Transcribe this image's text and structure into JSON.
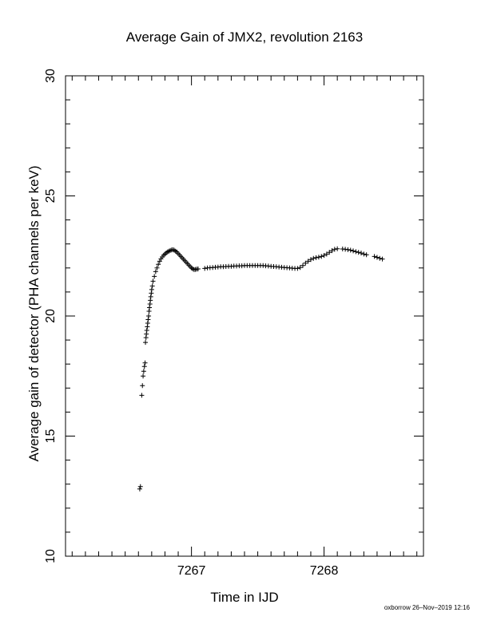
{
  "chart_data": {
    "type": "scatter",
    "title": "Average Gain of JMX2, revolution 2163",
    "xlabel": "Time in IJD",
    "ylabel": "Average gain of detector (PHA channels per keV)",
    "xlim": [
      7266.05,
      7268.75
    ],
    "ylim": [
      10,
      30
    ],
    "x_ticks": [
      7267,
      7268
    ],
    "y_ticks": [
      10,
      15,
      20,
      25,
      30
    ],
    "grid": false,
    "marker": "+",
    "series": [
      {
        "x": [
          7266.61,
          7266.615,
          7266.625,
          7266.63,
          7266.635,
          7266.64,
          7266.645,
          7266.65,
          7266.653,
          7266.657,
          7266.66,
          7266.663,
          7266.667,
          7266.67,
          7266.673,
          7266.677,
          7266.68,
          7266.683,
          7266.687,
          7266.69,
          7266.693,
          7266.697,
          7266.7,
          7266.705,
          7266.71,
          7266.72,
          7266.73,
          7266.74,
          7266.75,
          7266.76,
          7266.77,
          7266.78,
          7266.79,
          7266.8,
          7266.81,
          7266.82,
          7266.83,
          7266.84,
          7266.85,
          7266.86,
          7266.87,
          7266.88,
          7266.89,
          7266.9,
          7266.91,
          7266.92,
          7266.93,
          7266.94,
          7266.95,
          7266.96,
          7266.97,
          7266.98,
          7266.99,
          7267.0,
          7267.01,
          7267.02,
          7267.03,
          7267.04,
          7267.05,
          7267.1,
          7267.12,
          7267.14,
          7267.16,
          7267.18,
          7267.2,
          7267.22,
          7267.24,
          7267.26,
          7267.28,
          7267.3,
          7267.32,
          7267.34,
          7267.36,
          7267.38,
          7267.4,
          7267.42,
          7267.44,
          7267.46,
          7267.48,
          7267.5,
          7267.52,
          7267.54,
          7267.56,
          7267.58,
          7267.6,
          7267.62,
          7267.64,
          7267.66,
          7267.68,
          7267.7,
          7267.72,
          7267.74,
          7267.76,
          7267.78,
          7267.8,
          7267.82,
          7267.84,
          7267.86,
          7267.88,
          7267.9,
          7267.92,
          7267.94,
          7267.96,
          7267.98,
          7268.0,
          7268.02,
          7268.04,
          7268.06,
          7268.08,
          7268.1,
          7268.14,
          7268.16,
          7268.18,
          7268.2,
          7268.22,
          7268.24,
          7268.26,
          7268.28,
          7268.3,
          7268.32,
          7268.38,
          7268.4,
          7268.42,
          7268.44
        ],
        "y": [
          12.8,
          12.9,
          16.7,
          17.1,
          17.5,
          17.7,
          17.9,
          18.05,
          18.9,
          19.1,
          19.25,
          19.4,
          19.55,
          19.7,
          19.85,
          20.0,
          20.2,
          20.35,
          20.5,
          20.65,
          20.8,
          20.95,
          21.1,
          21.25,
          21.45,
          21.65,
          21.85,
          22.0,
          22.15,
          22.28,
          22.38,
          22.46,
          22.53,
          22.58,
          22.63,
          22.67,
          22.7,
          22.73,
          22.75,
          22.76,
          22.74,
          22.7,
          22.66,
          22.6,
          22.54,
          22.48,
          22.42,
          22.36,
          22.3,
          22.24,
          22.18,
          22.12,
          22.06,
          22.0,
          21.96,
          21.93,
          21.94,
          21.95,
          21.96,
          21.98,
          22.0,
          22.01,
          22.02,
          22.03,
          22.04,
          22.05,
          22.05,
          22.06,
          22.07,
          22.07,
          22.08,
          22.08,
          22.09,
          22.09,
          22.1,
          22.1,
          22.1,
          22.1,
          22.1,
          22.1,
          22.1,
          22.1,
          22.09,
          22.08,
          22.07,
          22.06,
          22.05,
          22.04,
          22.03,
          22.02,
          22.01,
          22.0,
          21.99,
          21.98,
          21.98,
          22.02,
          22.1,
          22.2,
          22.28,
          22.35,
          22.4,
          22.43,
          22.45,
          22.48,
          22.52,
          22.58,
          22.65,
          22.72,
          22.78,
          22.8,
          22.79,
          22.78,
          22.76,
          22.74,
          22.71,
          22.68,
          22.65,
          22.62,
          22.58,
          22.55,
          22.48,
          22.44,
          22.4,
          22.37
        ]
      }
    ]
  },
  "footer": "oxborrow 26–Nov–2019 12:16"
}
